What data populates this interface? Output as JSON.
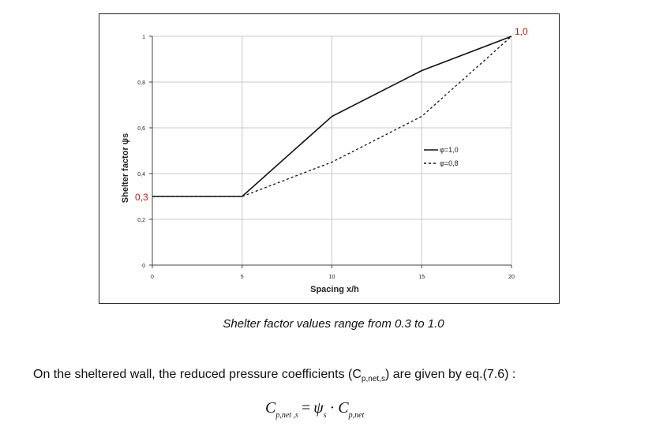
{
  "chart_data": {
    "type": "line",
    "xlabel": "Spacing x/h",
    "ylabel": "Shelter factor ψs",
    "xlim": [
      0,
      20
    ],
    "ylim": [
      0,
      1
    ],
    "x_ticks": [
      "0",
      "5",
      "10",
      "15",
      "20"
    ],
    "y_ticks": [
      "0",
      "0,2",
      "0,4",
      "0,6",
      "0,8",
      "1"
    ],
    "grid": true,
    "legend_position": "inside-right",
    "series": [
      {
        "name": "φ=1,0",
        "style": "solid",
        "color": "#111111",
        "x": [
          0,
          5,
          10,
          15,
          20
        ],
        "y": [
          0.3,
          0.3,
          0.65,
          0.85,
          1.0
        ]
      },
      {
        "name": "φ=0,8",
        "style": "dashed",
        "color": "#111111",
        "x": [
          0,
          5,
          10,
          15,
          20
        ],
        "y": [
          0.3,
          0.3,
          0.45,
          0.65,
          1.0
        ]
      }
    ],
    "annotations": [
      {
        "text": "1,0",
        "x": 20,
        "y": 1.0,
        "color": "#d01010"
      },
      {
        "text": "0,3",
        "x": 0,
        "y": 0.3,
        "color": "#d01010"
      }
    ]
  },
  "caption": "Shelter factor values range from 0.3 to 1.0",
  "body": {
    "before": "On the sheltered wall, the reduced pressure coefficients (C",
    "sub": "p,net,s",
    "after": ") are given by eq.(7.6) :"
  },
  "formula": {
    "lhs": "C",
    "lhs_sub": "p,net ,s",
    "eq": "=",
    "psi": "ψ",
    "psi_sub": "s",
    "dot": "·",
    "rhs": "C",
    "rhs_sub": "p,net"
  }
}
